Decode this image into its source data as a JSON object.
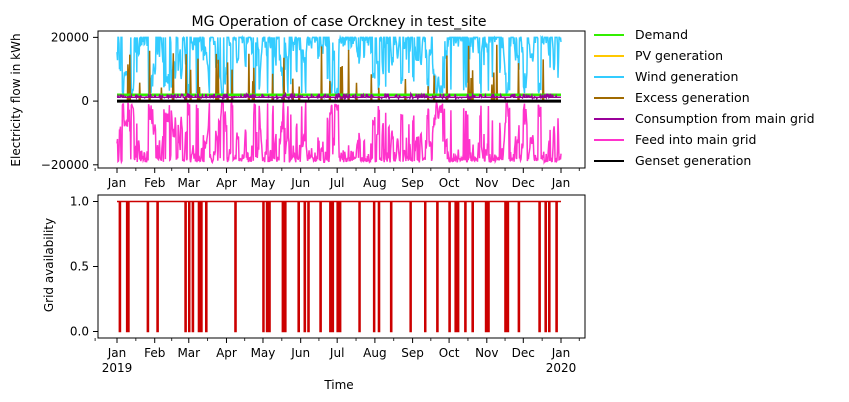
{
  "chart_data": [
    {
      "type": "line",
      "title": "MG Operation of case Orckney in test_site",
      "ylabel": "Electricity flow in kWh",
      "xlabel": "",
      "ylim": [
        -21000,
        22000
      ],
      "yticks": [
        20000,
        0,
        -20000
      ],
      "ytick_labels": [
        "20000",
        "0",
        "−20000"
      ],
      "xticks": [
        "Jan",
        "Feb",
        "Mar",
        "Apr",
        "May",
        "Jun",
        "Jul",
        "Aug",
        "Sep",
        "Oct",
        "Nov",
        "Dec",
        "Jan"
      ],
      "legend_position": "outside-right",
      "series": [
        {
          "name": "Demand",
          "color": "#33ee00",
          "values": [
            2000,
            2000
          ]
        },
        {
          "name": "PV generation",
          "color": "#ffc800",
          "values": [
            0,
            0
          ]
        },
        {
          "name": "Wind generation",
          "color": "#33ccff",
          "values": [
            14000,
            19500,
            8000,
            18000,
            12000,
            19500,
            5000,
            16000
          ]
        },
        {
          "name": "Excess generation",
          "color": "#a06a00",
          "values": [
            0,
            10000,
            0,
            16000,
            0,
            12000
          ]
        },
        {
          "name": "Consumption from main grid",
          "color": "#990099",
          "values": [
            1500,
            2000,
            1000
          ]
        },
        {
          "name": "Feed into main grid",
          "color": "#ff33cc",
          "values": [
            -12000,
            -19000,
            -4000,
            -18000,
            -9000,
            -19000
          ]
        },
        {
          "name": "Genset generation",
          "color": "#000000",
          "values": [
            0,
            0
          ]
        }
      ]
    },
    {
      "type": "line",
      "title": "",
      "ylabel": "Grid availability",
      "xlabel": "Time",
      "ylim": [
        -0.05,
        1.05
      ],
      "yticks": [
        1.0,
        0.5,
        0.0
      ],
      "ytick_labels": [
        "1.0",
        "0.5",
        "0.0"
      ],
      "xticks": [
        "Jan",
        "Feb",
        "Mar",
        "Apr",
        "May",
        "Jun",
        "Jul",
        "Aug",
        "Sep",
        "Oct",
        "Nov",
        "Dec",
        "Jan"
      ],
      "xtick_years": {
        "first": "2019",
        "last": "2020"
      },
      "series": [
        {
          "color": "#cc0000",
          "outage_days": [
            2,
            8,
            9,
            25,
            33,
            56,
            59,
            62,
            67,
            69,
            73,
            97,
            120,
            123,
            125,
            136,
            138,
            149,
            154,
            157,
            167,
            175,
            177,
            181,
            183,
            199,
            211,
            215,
            225,
            241,
            253,
            263,
            273,
            278,
            280,
            286,
            292,
            303,
            305,
            319,
            321,
            330,
            347,
            352,
            355,
            361
          ]
        }
      ]
    }
  ]
}
